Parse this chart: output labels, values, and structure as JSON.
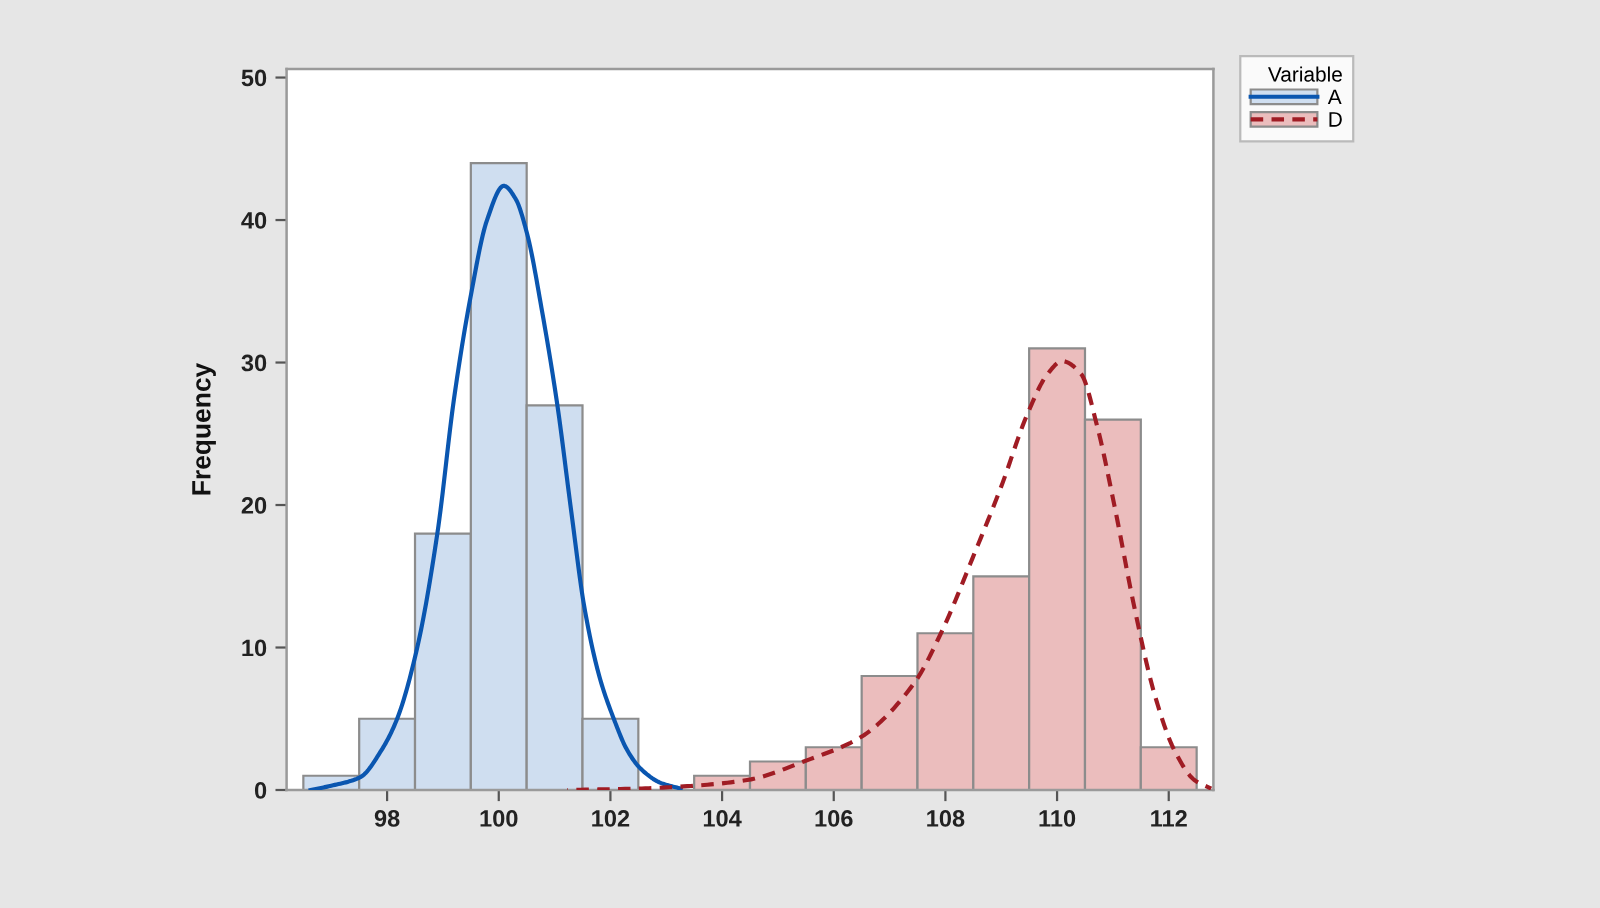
{
  "chart_data": {
    "type": "histogram",
    "ylabel": "Frequency",
    "legend_title": "Variable",
    "legend": "top right",
    "xlim": [
      96.2,
      112.8
    ],
    "xticks": [
      98,
      100,
      102,
      104,
      106,
      108,
      110,
      112
    ],
    "ylim": [
      0,
      50.6
    ],
    "yticks": [
      0,
      10,
      20,
      30,
      40,
      50
    ],
    "series": [
      {
        "type": "histogram",
        "name": "A",
        "color": "#cfdef0",
        "bins": [
          96.5,
          97.5,
          98.5,
          99.5,
          100.5,
          101.5,
          102.5
        ],
        "values": [
          1,
          5,
          18,
          44,
          27,
          5
        ]
      },
      {
        "type": "histogram",
        "name": "D",
        "color": "#ebbdbd",
        "bins": [
          103.5,
          104.5,
          105.5,
          106.5,
          107.5,
          108.5,
          109.5,
          110.5,
          111.5,
          112.5
        ],
        "values": [
          1,
          2,
          3,
          8,
          11,
          15,
          31,
          26,
          3
        ]
      },
      {
        "type": "line",
        "color": "#0a56b0",
        "line_style": "solid",
        "x": [
          96.63,
          97.0,
          97.52,
          97.9,
          98.18,
          98.54,
          98.9,
          99.2,
          99.49,
          99.79,
          100.09,
          100.3,
          100.51,
          100.78,
          101.05,
          101.3,
          101.53,
          101.8,
          102.06,
          102.3,
          102.54,
          102.9,
          103.26
        ],
        "values": [
          0,
          0.3,
          0.9,
          2.8,
          5,
          10,
          18,
          27.5,
          34.5,
          40,
          42.4,
          41.5,
          39,
          33.5,
          27,
          19.5,
          12.9,
          8,
          5,
          2.8,
          1.5,
          0.5,
          0.1
        ]
      },
      {
        "type": "line",
        "color": "#a01c24",
        "line_style": "dashed",
        "x": [
          101.23,
          102.5,
          103.5,
          104.45,
          105.53,
          106.48,
          107.44,
          107.92,
          108.52,
          109.0,
          109.47,
          109.83,
          110.09,
          110.43,
          110.72,
          111.03,
          111.38,
          111.74,
          112.1,
          112.46,
          112.76
        ],
        "values": [
          0,
          0.1,
          0.3,
          0.7,
          2.1,
          3.7,
          7.5,
          11,
          16.6,
          21.3,
          26.4,
          29.2,
          30.1,
          29.2,
          25.5,
          19.9,
          12.9,
          6.8,
          2.8,
          0.7,
          0.1
        ]
      }
    ]
  }
}
